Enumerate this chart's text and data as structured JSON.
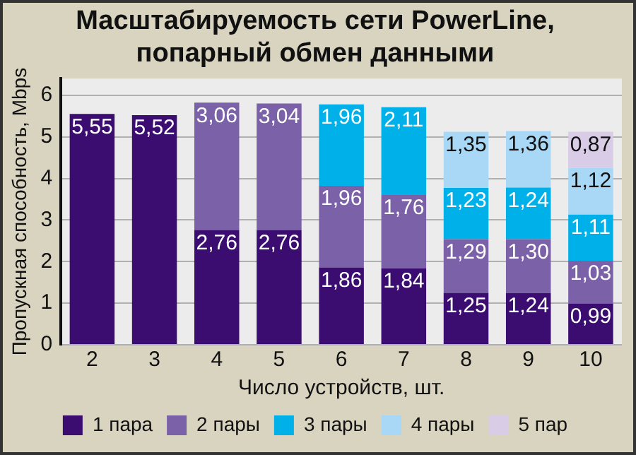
{
  "chart_data": {
    "type": "bar",
    "title": "Масштабируемость сети PowerLine,\nпопарный обмен данными",
    "xlabel": "Число устройств, шт.",
    "ylabel": "Пропускная способность, Mbps",
    "categories": [
      "2",
      "3",
      "4",
      "5",
      "6",
      "7",
      "8",
      "9",
      "10"
    ],
    "stacked": true,
    "ylim": [
      0,
      6.4
    ],
    "yticks": [
      0,
      1,
      2,
      3,
      4,
      5,
      6
    ],
    "grid": "y",
    "legend": "bottom",
    "series": [
      {
        "name": "1 пара",
        "color": "#3b0d70",
        "values": [
          5.55,
          5.52,
          2.76,
          2.76,
          1.86,
          1.84,
          1.25,
          1.24,
          0.99
        ],
        "value_labels": [
          "5,55",
          "5,52",
          "2,76",
          "2,76",
          "1,86",
          "1,84",
          "1,25",
          "1,24",
          "0,99"
        ]
      },
      {
        "name": "2 пары",
        "color": "#7b61a8",
        "values": [
          null,
          null,
          3.06,
          3.04,
          1.96,
          1.76,
          1.29,
          1.3,
          1.03
        ],
        "value_labels": [
          null,
          null,
          "3,06",
          "3,04",
          "1,96",
          "1,76",
          "1,29",
          "1,30",
          "1,03"
        ]
      },
      {
        "name": "3 пары",
        "color": "#00b0e8",
        "values": [
          null,
          null,
          null,
          null,
          1.96,
          2.11,
          1.23,
          1.24,
          1.11
        ],
        "value_labels": [
          null,
          null,
          null,
          null,
          "1,96",
          "2,11",
          "1,23",
          "1,24",
          "1,11"
        ]
      },
      {
        "name": "4 пары",
        "color": "#a8d8f5",
        "values": [
          null,
          null,
          null,
          null,
          null,
          null,
          1.35,
          1.36,
          1.12
        ],
        "value_labels": [
          null,
          null,
          null,
          null,
          null,
          null,
          "1,35",
          "1,36",
          "1,12"
        ]
      },
      {
        "name": "5 пар",
        "color": "#d8cce6",
        "values": [
          null,
          null,
          null,
          null,
          null,
          null,
          null,
          null,
          0.87
        ],
        "value_labels": [
          null,
          null,
          null,
          null,
          null,
          null,
          null,
          null,
          "0,87"
        ]
      }
    ]
  }
}
